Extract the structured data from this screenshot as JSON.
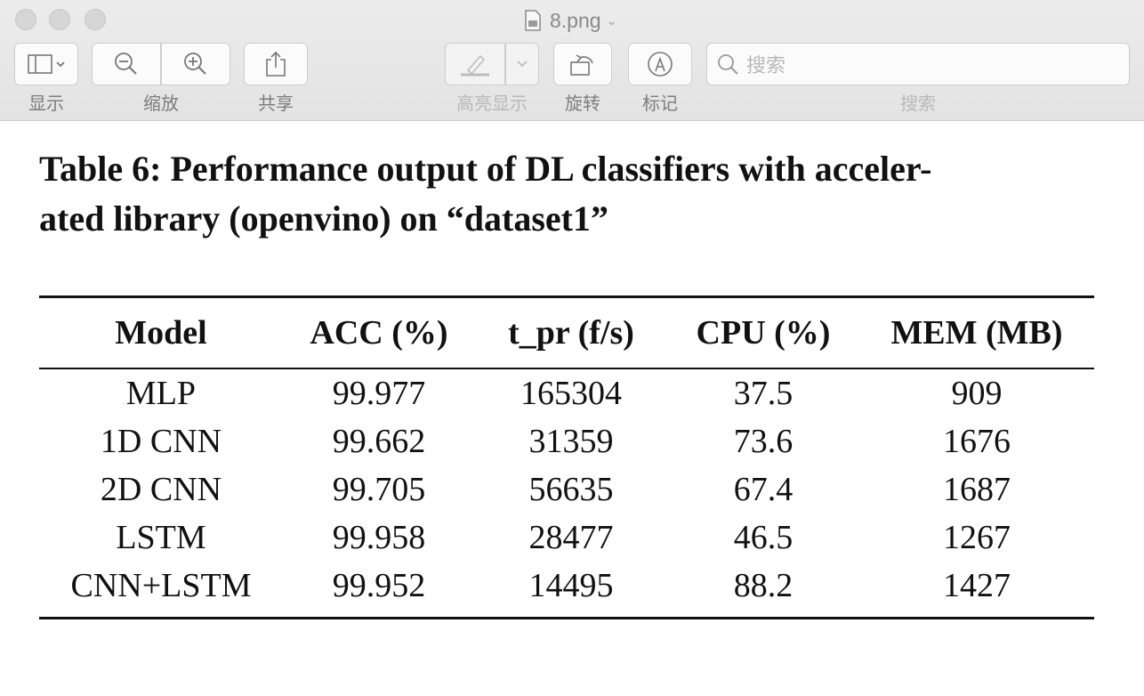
{
  "window": {
    "title": "8.png",
    "colors": {
      "toolbar": "#e8e8e8",
      "label": "#7d7d7d",
      "disabled_label": "#b9b9b9"
    }
  },
  "toolbar": {
    "view_label": "显示",
    "zoom_label": "缩放",
    "share_label": "共享",
    "highlight_label": "高亮显示",
    "rotate_label": "旋转",
    "markup_label": "标记",
    "search_label": "搜索",
    "search_placeholder": "搜索"
  },
  "document": {
    "caption_line1": "Table 6: Performance output of DL classifiers with acceler-",
    "caption_line2": "ated library (openvino) on “dataset1”",
    "table": {
      "headers": [
        "Model",
        "ACC (%)",
        "t_pr (f/s)",
        "CPU (%)",
        "MEM (MB)"
      ],
      "rows": [
        [
          "MLP",
          "99.977",
          "165304",
          "37.5",
          "909"
        ],
        [
          "1D CNN",
          "99.662",
          "31359",
          "73.6",
          "1676"
        ],
        [
          "2D CNN",
          "99.705",
          "56635",
          "67.4",
          "1687"
        ],
        [
          "LSTM",
          "99.958",
          "28477",
          "46.5",
          "1267"
        ],
        [
          "CNN+LSTM",
          "99.952",
          "14495",
          "88.2",
          "1427"
        ]
      ]
    }
  }
}
